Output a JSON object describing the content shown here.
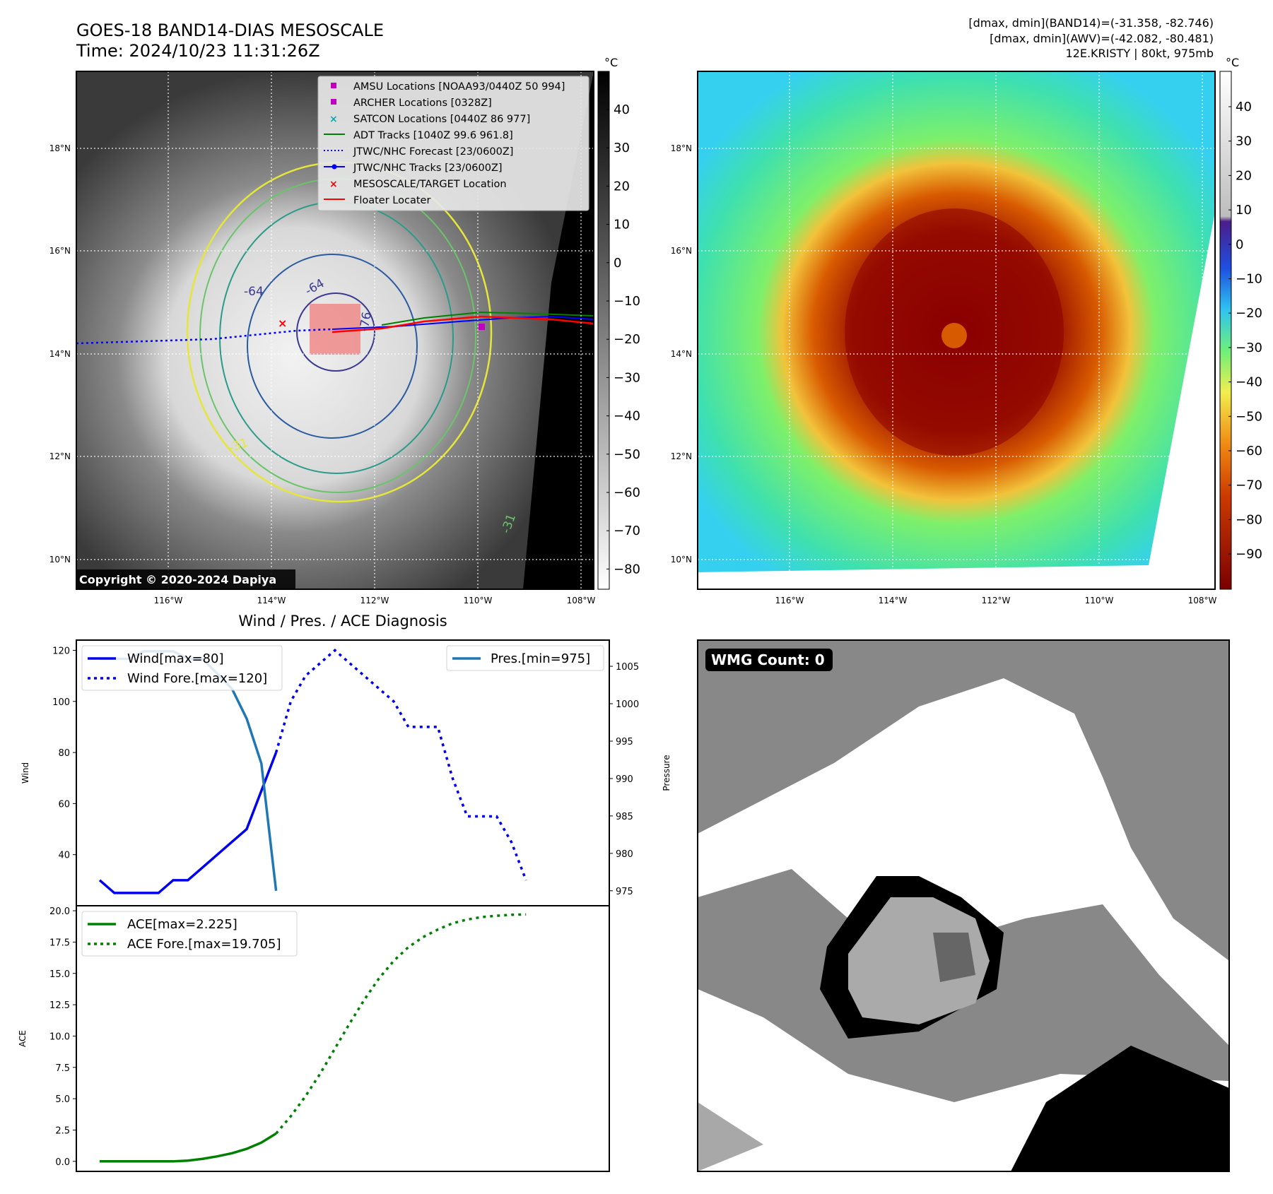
{
  "header": {
    "title_line1": "GOES-18 BAND14-DIAS MESOSCALE",
    "title_line2": "Time: 2024/10/23 11:31:26Z",
    "info_line1": "[dmax, dmin](BAND14)=(-31.358, -82.746)",
    "info_line2": "[dmax, dmin](AWV)=(-42.082, -80.481)",
    "info_line3": "12E.KRISTY | 80kt, 975mb"
  },
  "map": {
    "lat_labels": [
      "18°N",
      "16°N",
      "14°N",
      "12°N",
      "10°N"
    ],
    "lon_labels": [
      "116°W",
      "114°W",
      "112°W",
      "110°W",
      "108°W"
    ],
    "copyright": "Copyright © 2020-2024 Dapiya",
    "contour_labels": [
      "-64",
      "-64",
      "-76",
      "-31",
      "-31"
    ],
    "legend": [
      "AMSU Locations [NOAA93/0440Z 50 994]",
      "ARCHER Locations [0328Z]",
      "SATCON Locations [0440Z 86 977]",
      "ADT Tracks [1040Z 99.6 961.8]",
      "JTWC/NHC Forecast [23/0600Z]",
      "JTWC/NHC Tracks [23/0600Z]",
      "MESOSCALE/TARGET Location",
      "Floater Locater"
    ]
  },
  "colorbar_gray": {
    "unit": "°C",
    "ticks": [
      "40",
      "30",
      "20",
      "10",
      "0",
      "−10",
      "−20",
      "−30",
      "−40",
      "−50",
      "−60",
      "−70",
      "−80"
    ]
  },
  "colorbar_color": {
    "unit": "°C",
    "ticks": [
      "40",
      "30",
      "20",
      "10",
      "0",
      "−10",
      "−20",
      "−30",
      "−40",
      "−50",
      "−60",
      "−70",
      "−80",
      "−90"
    ]
  },
  "wmg": {
    "label": "WMG Count: 0"
  },
  "chart_data": [
    {
      "type": "line",
      "title": "Wind / Pres. / ACE Diagnosis",
      "ylabel": "Wind",
      "ylabel_right": "Pressure",
      "ylim": [
        20,
        124
      ],
      "ylim_right": [
        973,
        1008.5
      ],
      "yticks": [
        40,
        60,
        80,
        100,
        120
      ],
      "yticks_right": [
        975,
        980,
        985,
        990,
        995,
        1000,
        1005
      ],
      "series": [
        {
          "name": "Wind[max=80]",
          "axis": "left",
          "style": "solid",
          "color": "#0000ee",
          "values": [
            30,
            25,
            25,
            25,
            25,
            30,
            30,
            35,
            40,
            45,
            50,
            65,
            80
          ]
        },
        {
          "name": "Wind Fore.[max=120]",
          "axis": "left",
          "style": "dotted",
          "color": "#0000ee",
          "values": [
            80,
            100,
            110,
            115,
            120,
            115,
            110,
            105,
            100,
            90,
            90,
            90,
            70,
            55,
            55,
            55,
            45,
            30
          ]
        },
        {
          "name": "Pres.[min=975]",
          "axis": "right",
          "style": "solid",
          "color": "#1f77b4",
          "values": [
            1006,
            1006,
            1006,
            1007,
            1007,
            1007,
            1006,
            1006,
            1004,
            1002,
            998,
            992,
            975
          ]
        }
      ]
    },
    {
      "type": "line",
      "ylabel": "ACE",
      "ylim": [
        -0.8,
        20.4
      ],
      "yticks": [
        "0.0",
        "2.5",
        "5.0",
        "7.5",
        "10.0",
        "12.5",
        "15.0",
        "17.5",
        "20.0"
      ],
      "series": [
        {
          "name": "ACE[max=2.225]",
          "style": "solid",
          "color": "#008000",
          "values": [
            0,
            0,
            0,
            0,
            0,
            0,
            0.06,
            0.2,
            0.4,
            0.65,
            1.0,
            1.5,
            2.225
          ]
        },
        {
          "name": "ACE Fore.[max=19.705]",
          "style": "dotted",
          "color": "#008000",
          "values": [
            2.225,
            3.6,
            5.2,
            7.0,
            9.0,
            11.0,
            12.9,
            14.6,
            16.0,
            17.1,
            17.9,
            18.5,
            19.0,
            19.3,
            19.5,
            19.6,
            19.68,
            19.705
          ]
        }
      ]
    }
  ]
}
